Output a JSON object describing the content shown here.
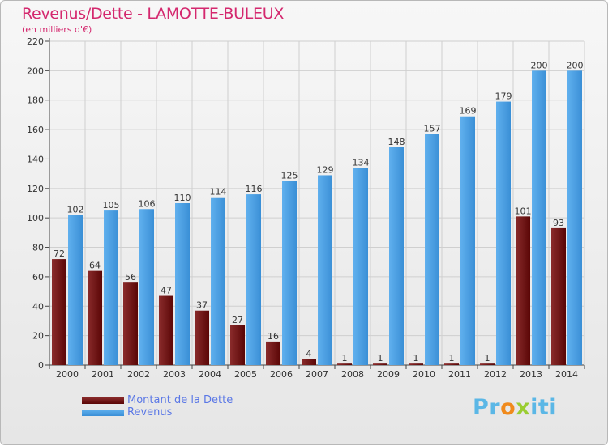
{
  "header": {
    "title": "Revenus/Dette - LAMOTTE-BULEUX",
    "subtitle": "(en milliers d'€)"
  },
  "colors": {
    "title": "#d4286e",
    "debt_dark": "#5a0606",
    "debt_light": "#8a2b2b",
    "revenue_dark": "#3a8fd6",
    "revenue_light": "#60b0ee",
    "legend_text": "#5b78e6"
  },
  "logo": {
    "letters": [
      "P",
      "r",
      "o",
      "x",
      "i",
      "t",
      "i"
    ],
    "colors": [
      "#5bb7e6",
      "#5bb7e6",
      "#f08a1c",
      "#9acd32",
      "#5bb7e6",
      "#5bb7e6",
      "#5bb7e6"
    ]
  },
  "chart_data": {
    "type": "bar",
    "title": "Revenus/Dette - LAMOTTE-BULEUX",
    "subtitle": "(en milliers d'€)",
    "categories": [
      "2000",
      "2001",
      "2002",
      "2003",
      "2004",
      "2005",
      "2006",
      "2007",
      "2008",
      "2009",
      "2010",
      "2011",
      "2012",
      "2013",
      "2014"
    ],
    "series": [
      {
        "name": "Montant de la Dette",
        "values": [
          72,
          64,
          56,
          47,
          37,
          27,
          16,
          4,
          1,
          1,
          1,
          1,
          1,
          101,
          93
        ]
      },
      {
        "name": "Revenus",
        "values": [
          102,
          105,
          106,
          110,
          114,
          116,
          125,
          129,
          134,
          148,
          157,
          169,
          179,
          200,
          200
        ]
      }
    ],
    "yticks": [
      0,
      20,
      40,
      60,
      80,
      100,
      120,
      140,
      160,
      180,
      200,
      220
    ],
    "ylim": [
      0,
      220
    ],
    "grid": true,
    "legend_position": "bottom-left"
  }
}
